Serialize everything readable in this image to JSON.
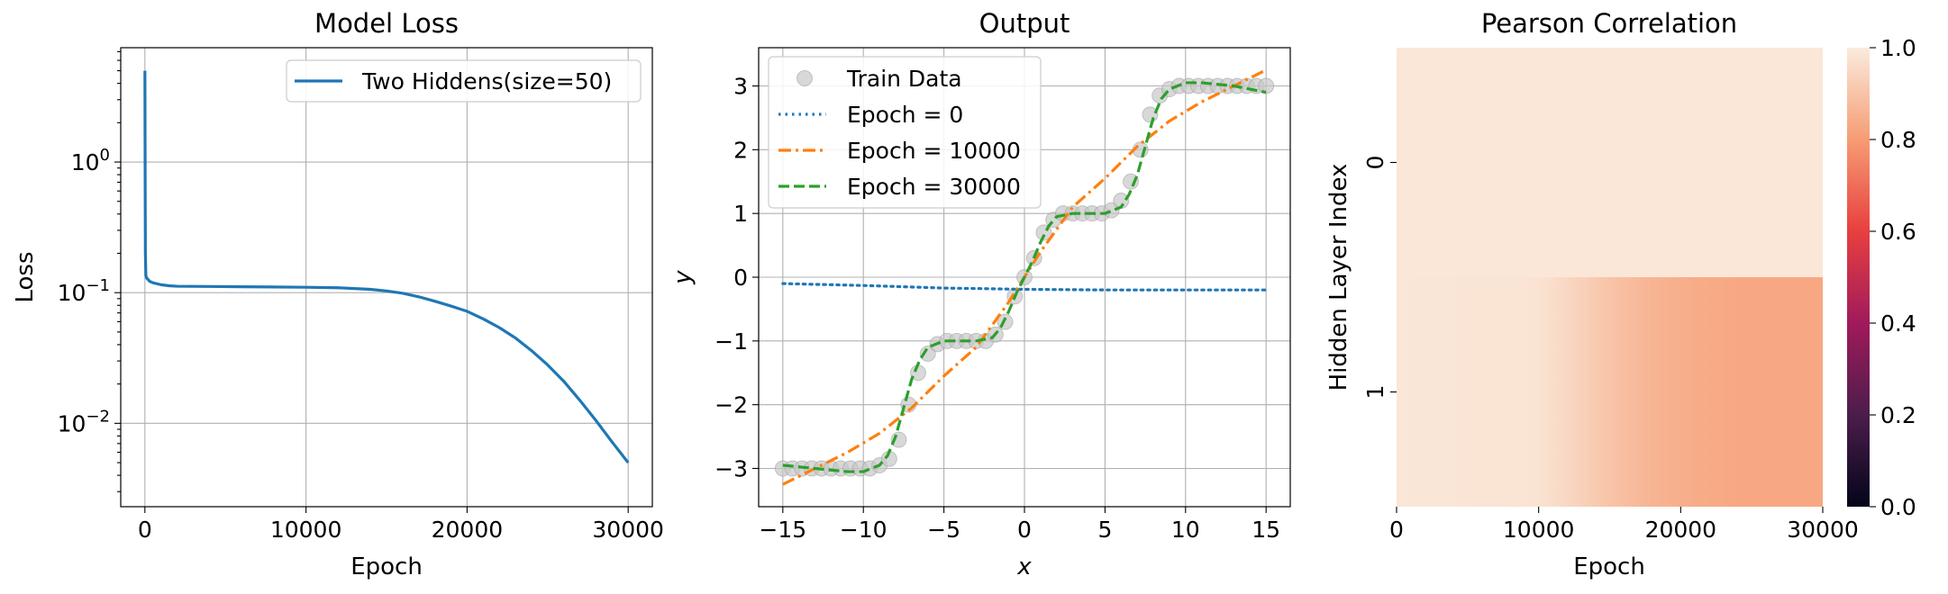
{
  "chart_data": [
    {
      "type": "line",
      "title": "Model Loss",
      "xlabel": "Epoch",
      "ylabel": "Loss",
      "yscale": "log",
      "xlim": [
        -1500,
        31500
      ],
      "ylim": [
        0.0023,
        7.5
      ],
      "grid": true,
      "legend_position": "top-right",
      "xticks": [
        0,
        10000,
        20000,
        30000
      ],
      "xtick_labels": [
        "0",
        "10000",
        "20000",
        "30000"
      ],
      "yticks": [
        1,
        0.1,
        0.01
      ],
      "ytick_labels": [
        {
          "base": "10",
          "exp": "0"
        },
        {
          "base": "10",
          "exp": "−1"
        },
        {
          "base": "10",
          "exp": "−2"
        }
      ],
      "series": [
        {
          "name": "Two Hiddens(size=50)",
          "color": "#1f77b4",
          "x": [
            0,
            5,
            15,
            30,
            60,
            100,
            200,
            300,
            500,
            1000,
            1500,
            2000,
            4000,
            6000,
            8000,
            10000,
            12000,
            14000,
            15000,
            16000,
            17000,
            18000,
            19000,
            20000,
            21000,
            22000,
            23000,
            24000,
            25000,
            26000,
            27000,
            28000,
            29000,
            30000
          ],
          "y": [
            5.0,
            3.0,
            0.8,
            0.2,
            0.135,
            0.13,
            0.126,
            0.122,
            0.119,
            0.115,
            0.113,
            0.112,
            0.1115,
            0.111,
            0.1105,
            0.11,
            0.109,
            0.106,
            0.103,
            0.099,
            0.093,
            0.086,
            0.079,
            0.072,
            0.063,
            0.054,
            0.045,
            0.036,
            0.028,
            0.021,
            0.015,
            0.0105,
            0.0072,
            0.005
          ]
        }
      ]
    },
    {
      "type": "line",
      "title": "Output",
      "xlabel": "x",
      "ylabel": "y",
      "xlim": [
        -16.5,
        16.5
      ],
      "ylim": [
        -3.6,
        3.6
      ],
      "grid": true,
      "legend_position": "top-left",
      "xticks": [
        -15,
        -10,
        -5,
        0,
        5,
        10,
        15
      ],
      "xtick_labels": [
        "−15",
        "−10",
        "−5",
        "0",
        "5",
        "10",
        "15"
      ],
      "yticks": [
        -3,
        -2,
        -1,
        0,
        1,
        2,
        3
      ],
      "ytick_labels": [
        "−3",
        "−2",
        "−1",
        "0",
        "1",
        "2",
        "3"
      ],
      "series": [
        {
          "name": "Train Data",
          "style": "markers",
          "color": "#c8c8c8",
          "x": [
            -15,
            -14.4,
            -13.8,
            -13.2,
            -12.6,
            -12,
            -11.4,
            -10.8,
            -10.2,
            -9.6,
            -9,
            -8.4,
            -7.8,
            -7.2,
            -6.6,
            -6,
            -5.4,
            -4.8,
            -4.2,
            -3.6,
            -3,
            -2.4,
            -1.8,
            -1.2,
            -0.6,
            0,
            0.6,
            1.2,
            1.8,
            2.4,
            3,
            3.6,
            4.2,
            4.8,
            5.4,
            6,
            6.6,
            7.2,
            7.8,
            8.4,
            9,
            9.6,
            10.2,
            10.8,
            11.4,
            12,
            12.6,
            13.2,
            13.8,
            14.4,
            15
          ],
          "y": [
            -3,
            -3,
            -3,
            -3,
            -3,
            -3,
            -3,
            -3,
            -3,
            -3,
            -2.95,
            -2.85,
            -2.55,
            -2.0,
            -1.5,
            -1.2,
            -1.05,
            -1.0,
            -1.0,
            -1.0,
            -1.0,
            -1.0,
            -0.9,
            -0.7,
            -0.3,
            0.0,
            0.3,
            0.7,
            0.9,
            1.0,
            1.0,
            1.0,
            1.0,
            1.0,
            1.05,
            1.2,
            1.5,
            2.0,
            2.55,
            2.85,
            2.95,
            3,
            3,
            3,
            3,
            3,
            3,
            3,
            3,
            3,
            3
          ]
        },
        {
          "name": "Epoch = 0",
          "style": "dotted",
          "color": "#1f77b4",
          "x": [
            -15,
            -10,
            -5,
            0,
            5,
            10,
            15
          ],
          "y": [
            -0.1,
            -0.13,
            -0.17,
            -0.19,
            -0.2,
            -0.2,
            -0.2
          ]
        },
        {
          "name": "Epoch = 10000",
          "style": "dashdot",
          "color": "#ff7f0e",
          "x": [
            -15,
            -13,
            -11,
            -9,
            -7,
            -5,
            -3,
            -1,
            0,
            1,
            3,
            5,
            7,
            9,
            11,
            13,
            15
          ],
          "y": [
            -3.25,
            -3.0,
            -2.75,
            -2.45,
            -2.05,
            -1.55,
            -1.1,
            -0.4,
            0.0,
            0.4,
            1.1,
            1.55,
            2.05,
            2.45,
            2.75,
            3.0,
            3.25
          ]
        },
        {
          "name": "Epoch = 30000",
          "style": "dashed",
          "color": "#2ca02c",
          "x": [
            -15,
            -13,
            -11,
            -10,
            -9,
            -8.5,
            -8,
            -7.5,
            -7,
            -6.5,
            -6,
            -5.5,
            -5,
            -4,
            -3,
            -2,
            -1.5,
            -1,
            -0.5,
            0,
            0.5,
            1,
            1.5,
            2,
            3,
            4,
            5,
            5.5,
            6,
            6.5,
            7,
            7.5,
            8,
            8.5,
            9,
            10,
            11,
            13,
            15
          ],
          "y": [
            -2.95,
            -3.0,
            -3.05,
            -3.05,
            -2.95,
            -2.8,
            -2.5,
            -2.05,
            -1.6,
            -1.3,
            -1.1,
            -1.05,
            -1.0,
            -1.0,
            -1.0,
            -0.95,
            -0.8,
            -0.55,
            -0.25,
            0.0,
            0.25,
            0.55,
            0.8,
            0.95,
            1.0,
            1.0,
            1.0,
            1.05,
            1.1,
            1.3,
            1.6,
            2.05,
            2.5,
            2.8,
            2.95,
            3.05,
            3.05,
            3.0,
            2.9
          ]
        }
      ]
    },
    {
      "type": "heatmap",
      "title": "Pearson Correlation",
      "xlabel": "Epoch",
      "ylabel": "Hidden Layer Index",
      "xlim": [
        0,
        30000
      ],
      "xticks": [
        0,
        10000,
        20000,
        30000
      ],
      "xtick_labels": [
        "0",
        "10000",
        "20000",
        "30000"
      ],
      "rows": [
        "0",
        "1"
      ],
      "colorbar": {
        "range": [
          0.0,
          1.0
        ],
        "ticks": [
          "0.0",
          "0.2",
          "0.4",
          "0.6",
          "0.8",
          "1.0"
        ],
        "colors": [
          "#03051a",
          "#4c1d4b",
          "#a11a5b",
          "#e83f3f",
          "#f69c73",
          "#faebdd"
        ]
      },
      "values": [
        {
          "row": "0",
          "x": [
            0,
            30000
          ],
          "y": [
            0.99,
            0.99
          ]
        },
        {
          "row": "1",
          "x": [
            0,
            10000,
            12000,
            15000,
            18000,
            21000,
            24000,
            30000
          ],
          "y": [
            0.99,
            0.98,
            0.95,
            0.9,
            0.86,
            0.84,
            0.83,
            0.83
          ]
        }
      ]
    }
  ]
}
